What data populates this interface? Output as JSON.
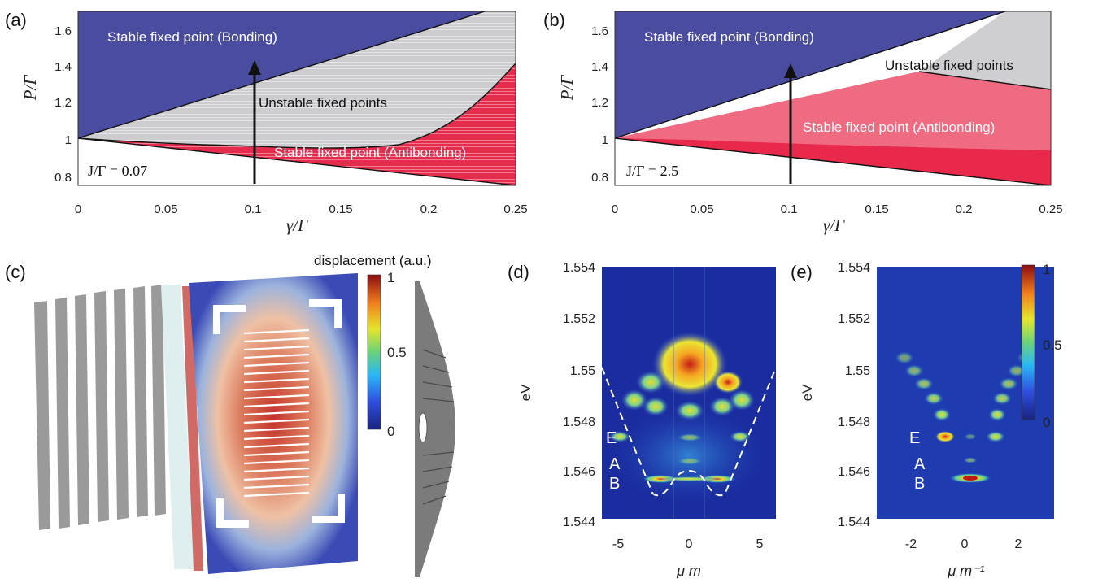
{
  "colors": {
    "bonding": "#4a4c9f",
    "unstable": "#cfcfd1",
    "antibonding": "#e4284c",
    "antibonding_light": "#ee6880"
  },
  "panel_a": {
    "label": "(a)",
    "region_bonding": "Stable fixed point (Bonding)",
    "region_unstable": "Unstable fixed points",
    "region_antibonding": "Stable fixed point (Antibonding)",
    "param": "J/Γ = 0.07",
    "xlabel": "γ/Γ",
    "ylabel": "P/Γ",
    "xticks": [
      "0",
      "0.05",
      "0.1",
      "0.15",
      "0.2",
      "0.25"
    ],
    "yticks": [
      "0.8",
      "1",
      "1.2",
      "1.4",
      "1.6"
    ]
  },
  "panel_b": {
    "label": "(b)",
    "region_bonding": "Stable fixed point (Bonding)",
    "region_unstable": "Unstable fixed points",
    "region_antibonding": "Stable fixed point (Antibonding)",
    "param": "J/Γ = 2.5",
    "xlabel": "γ/Γ",
    "ylabel": "P/Γ",
    "xticks": [
      "0",
      "0.05",
      "0.1",
      "0.15",
      "0.2",
      "0.25"
    ],
    "yticks": [
      "0.8",
      "1",
      "1.2",
      "1.4",
      "1.6"
    ]
  },
  "panel_c": {
    "label": "(c)",
    "colorbar_title": "displacement (a.u.)",
    "colorbar_ticks": [
      "1",
      "0.5",
      "0"
    ]
  },
  "panel_d": {
    "label": "(d)",
    "ylabel": "eV",
    "xlabel": "μ m",
    "yticks": [
      "1.554",
      "1.552",
      "1.55",
      "1.548",
      "1.546",
      "1.544"
    ],
    "xticks": [
      "-5",
      "0",
      "5"
    ],
    "mode_labels": [
      "E",
      "A",
      "B"
    ]
  },
  "panel_e": {
    "label": "(e)",
    "ylabel": "eV",
    "xlabel": "μ m⁻¹",
    "yticks": [
      "1.554",
      "1.552",
      "1.55",
      "1.548",
      "1.546",
      "1.544"
    ],
    "xticks": [
      "-2",
      "0",
      "2"
    ],
    "mode_labels": [
      "E",
      "A",
      "B"
    ],
    "colorbar_ticks": [
      "1",
      "0.5",
      "0"
    ]
  }
}
